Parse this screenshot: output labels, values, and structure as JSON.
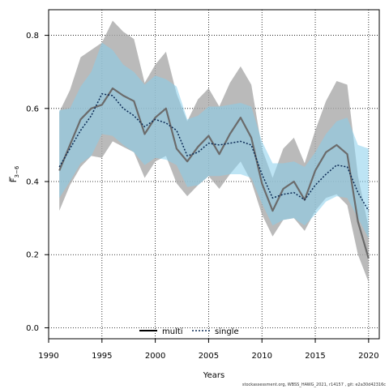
{
  "chart_data": {
    "type": "line",
    "xlabel": "Years",
    "ylabel_main": "F",
    "ylabel_sub": "3−6",
    "xlim": [
      1990,
      2021
    ],
    "ylim": [
      -0.03,
      0.87
    ],
    "xticks": [
      1990,
      1995,
      2000,
      2005,
      2010,
      2015,
      2020
    ],
    "yticks": [
      0.0,
      0.2,
      0.4,
      0.6,
      0.8
    ],
    "ytick_labels": [
      "0.0",
      "0.2",
      "0.4",
      "0.6",
      "0.8"
    ],
    "grid": true,
    "legend_position": "bottom-center",
    "x": [
      1991,
      1992,
      1993,
      1994,
      1995,
      1996,
      1997,
      1998,
      1999,
      2000,
      2001,
      2002,
      2003,
      2004,
      2005,
      2006,
      2007,
      2008,
      2009,
      2010,
      2011,
      2012,
      2013,
      2014,
      2015,
      2016,
      2017,
      2018,
      2019,
      2020
    ],
    "series": [
      {
        "name": "multi",
        "color": "#6b6b6b",
        "band_color": "#a9a9a9",
        "values": [
          0.43,
          0.5,
          0.57,
          0.6,
          0.61,
          0.655,
          0.635,
          0.62,
          0.53,
          0.575,
          0.6,
          0.49,
          0.455,
          0.495,
          0.525,
          0.475,
          0.53,
          0.575,
          0.52,
          0.395,
          0.32,
          0.38,
          0.4,
          0.35,
          0.43,
          0.48,
          0.5,
          0.475,
          0.29,
          0.19
        ],
        "upper": [
          0.59,
          0.65,
          0.74,
          0.76,
          0.78,
          0.84,
          0.81,
          0.79,
          0.67,
          0.72,
          0.755,
          0.64,
          0.565,
          0.625,
          0.655,
          0.605,
          0.67,
          0.715,
          0.665,
          0.49,
          0.41,
          0.49,
          0.52,
          0.45,
          0.54,
          0.62,
          0.675,
          0.665,
          0.415,
          0.275
        ],
        "lower": [
          0.32,
          0.39,
          0.44,
          0.47,
          0.465,
          0.51,
          0.495,
          0.48,
          0.41,
          0.455,
          0.47,
          0.395,
          0.36,
          0.39,
          0.415,
          0.38,
          0.42,
          0.455,
          0.4,
          0.31,
          0.25,
          0.295,
          0.3,
          0.265,
          0.32,
          0.355,
          0.365,
          0.335,
          0.2,
          0.125
        ]
      },
      {
        "name": "single",
        "color": "#0b2a55",
        "band_color": "#87ceeb",
        "values": [
          0.44,
          0.49,
          0.54,
          0.58,
          0.64,
          0.635,
          0.6,
          0.58,
          0.55,
          0.57,
          0.56,
          0.54,
          0.47,
          0.48,
          0.505,
          0.5,
          0.505,
          0.51,
          0.5,
          0.42,
          0.355,
          0.365,
          0.37,
          0.35,
          0.39,
          0.42,
          0.445,
          0.44,
          0.37,
          0.32
        ],
        "upper": [
          0.595,
          0.6,
          0.66,
          0.7,
          0.78,
          0.76,
          0.72,
          0.7,
          0.665,
          0.69,
          0.68,
          0.66,
          0.57,
          0.58,
          0.605,
          0.605,
          0.61,
          0.615,
          0.605,
          0.51,
          0.45,
          0.45,
          0.455,
          0.44,
          0.48,
          0.53,
          0.565,
          0.575,
          0.5,
          0.49
        ],
        "lower": [
          0.355,
          0.4,
          0.45,
          0.47,
          0.53,
          0.525,
          0.5,
          0.48,
          0.445,
          0.465,
          0.46,
          0.445,
          0.385,
          0.39,
          0.415,
          0.415,
          0.42,
          0.42,
          0.41,
          0.34,
          0.28,
          0.295,
          0.3,
          0.28,
          0.31,
          0.345,
          0.36,
          0.355,
          0.3,
          0.245
        ]
      }
    ]
  },
  "footer": "stockassessment.org, WBSS_HAWG_2021, r14157 , git: e2a30d42316c"
}
